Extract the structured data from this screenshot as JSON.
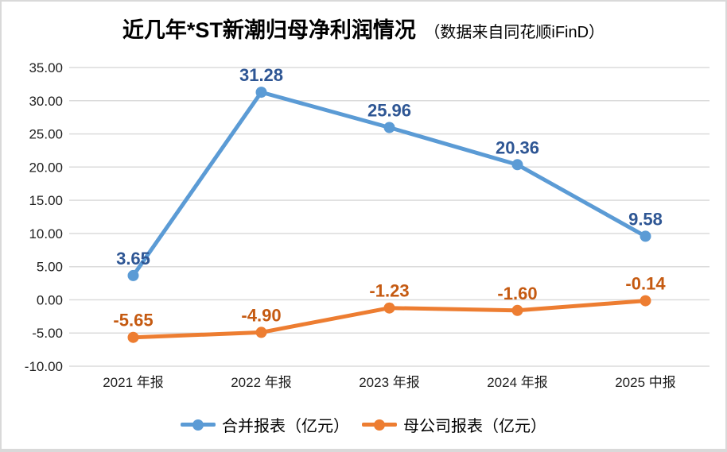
{
  "title": {
    "main": "近几年*ST新潮归母净利润情况",
    "sub": "（数据来自同花顺iFinD）"
  },
  "colors": {
    "background": "#FFFFFF",
    "frame_border": "#D9D9D9",
    "gridline": "#DBDBDB",
    "axis_text": "#1F1F1F",
    "series_blue": "#5B9BD5",
    "series_blue_label": "#2E5694",
    "series_orange": "#ED7D31",
    "series_orange_label": "#C55A11"
  },
  "chart_data": {
    "type": "line",
    "title": "近几年*ST新潮归母净利润情况（数据来自同花顺iFinD）",
    "categories": [
      "2021 年报",
      "2022 年报",
      "2023 年报",
      "2024 年报",
      "2025 中报"
    ],
    "series": [
      {
        "name": "合并报表（亿元）",
        "values": [
          3.65,
          31.28,
          25.96,
          20.36,
          9.58
        ],
        "line_color": "#5B9BD5",
        "label_color": "#2E5694"
      },
      {
        "name": "母公司报表（亿元）",
        "values": [
          -5.65,
          -4.9,
          -1.23,
          -1.6,
          -0.14
        ],
        "line_color": "#ED7D31",
        "label_color": "#C55A11"
      }
    ],
    "xlabel": "",
    "ylabel": "",
    "ylim": [
      -10,
      35
    ],
    "ytick_step": 5,
    "ytick_format": "two-decimals",
    "grid": true,
    "data_labels": true,
    "legend_position": "bottom"
  }
}
